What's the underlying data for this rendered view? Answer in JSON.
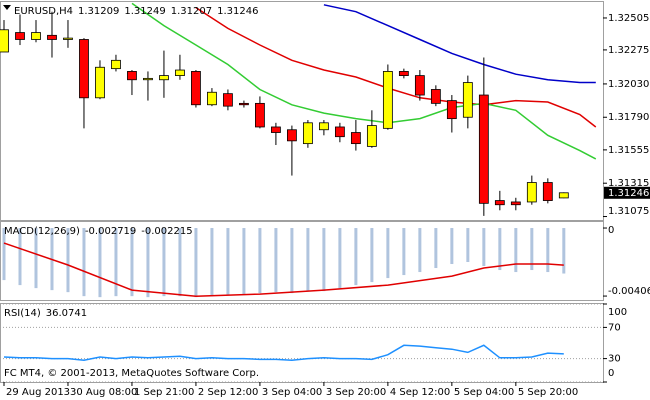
{
  "chart_data": [
    {
      "type": "candlestick",
      "label": "EURUSD,H4",
      "x": [
        0,
        1,
        2,
        3,
        4,
        5,
        6,
        7,
        8,
        9,
        10,
        11,
        12,
        13,
        14,
        15,
        16,
        17,
        18,
        19,
        20,
        21,
        22,
        23,
        24,
        25,
        26,
        27,
        28,
        29,
        30,
        31,
        32,
        33,
        34,
        35
      ],
      "open": [
        1.3226,
        1.324,
        1.3235,
        1.3238,
        1.3235,
        1.3235,
        1.3193,
        1.3214,
        1.3212,
        1.3206,
        1.3206,
        1.3209,
        1.3212,
        1.3188,
        1.3196,
        1.3189,
        1.3189,
        1.3172,
        1.317,
        1.316,
        1.317,
        1.3172,
        1.3168,
        1.3158,
        1.3171,
        1.3212,
        1.3209,
        1.3199,
        1.3191,
        1.3179,
        1.3195,
        1.3119,
        1.3118,
        1.3118,
        1.3132,
        1.31209
      ],
      "high": [
        1.3249,
        1.3253,
        1.3249,
        1.3255,
        1.3249,
        1.3236,
        1.322,
        1.3224,
        1.3213,
        1.3212,
        1.3227,
        1.3224,
        1.3213,
        1.32,
        1.3199,
        1.3191,
        1.3194,
        1.3175,
        1.3173,
        1.3177,
        1.3177,
        1.3175,
        1.3177,
        1.3184,
        1.3217,
        1.3214,
        1.3213,
        1.3202,
        1.3195,
        1.3209,
        1.3222,
        1.3126,
        1.3121,
        1.3137,
        1.3135,
        1.31249
      ],
      "low": [
        1.3226,
        1.3231,
        1.3233,
        1.3222,
        1.3229,
        1.3171,
        1.3192,
        1.3212,
        1.3195,
        1.3191,
        1.3193,
        1.3206,
        1.3186,
        1.3187,
        1.3184,
        1.3186,
        1.3171,
        1.3159,
        1.3137,
        1.3157,
        1.3166,
        1.3161,
        1.3155,
        1.3157,
        1.317,
        1.3207,
        1.3191,
        1.3187,
        1.3168,
        1.3171,
        1.3108,
        1.3112,
        1.3112,
        1.3116,
        1.3117,
        1.31207
      ],
      "close": [
        1.3242,
        1.3235,
        1.324,
        1.3235,
        1.3236,
        1.3193,
        1.3215,
        1.322,
        1.3206,
        1.3207,
        1.3209,
        1.3213,
        1.3188,
        1.3197,
        1.3187,
        1.3188,
        1.3172,
        1.3168,
        1.3162,
        1.3175,
        1.3175,
        1.3165,
        1.316,
        1.3173,
        1.3212,
        1.3209,
        1.3195,
        1.3189,
        1.3178,
        1.3204,
        1.3117,
        1.3116,
        1.3116,
        1.3132,
        1.3119,
        1.31246
      ],
      "up_color": "#ffff00",
      "down_color": "#ff0000",
      "wick_color": "#000000",
      "series": [
        {
          "color": "#0000c8",
          "x": [
            20,
            22,
            24,
            26,
            28,
            30,
            32,
            34,
            36,
            37
          ],
          "values": [
            1.326,
            1.3255,
            1.3245,
            1.3235,
            1.3225,
            1.3217,
            1.321,
            1.3206,
            1.3204,
            1.3204
          ]
        },
        {
          "color": "#e00000",
          "x": [
            12,
            14,
            16,
            18,
            20,
            22,
            24,
            26,
            28,
            30,
            32,
            34,
            36,
            37
          ],
          "values": [
            1.3258,
            1.3243,
            1.3231,
            1.322,
            1.3213,
            1.3208,
            1.32,
            1.3193,
            1.319,
            1.3188,
            1.3191,
            1.319,
            1.3181,
            1.3172
          ]
        },
        {
          "color": "#33cc33",
          "x": [
            8,
            10,
            12,
            14,
            16,
            18,
            20,
            22,
            24,
            26,
            28,
            30,
            32,
            34,
            36,
            37
          ],
          "values": [
            1.3261,
            1.3245,
            1.3231,
            1.3217,
            1.3199,
            1.3188,
            1.3182,
            1.3178,
            1.3175,
            1.3178,
            1.3186,
            1.3189,
            1.3184,
            1.3166,
            1.3155,
            1.3149
          ]
        }
      ],
      "xlim": [
        -0.25,
        37.45
      ],
      "ylim": [
        1.3105,
        1.3262
      ],
      "yticks": [
        1.32505,
        1.32275,
        {
          "value": 1.3203,
          "label": "1.32030"
        },
        {
          "value": 1.3179,
          "label": "1.31790"
        },
        1.31555,
        1.31315,
        1.31075
      ],
      "grid": false
    },
    {
      "type": "bar",
      "label": "MACD(12,26,9)",
      "x": [
        0,
        1,
        2,
        3,
        4,
        5,
        6,
        7,
        8,
        9,
        10,
        11,
        12,
        13,
        14,
        15,
        16,
        17,
        18,
        19,
        20,
        21,
        22,
        23,
        24,
        25,
        26,
        27,
        28,
        29,
        30,
        31,
        32,
        33,
        34,
        35
      ],
      "series": [
        {
          "style": "bar",
          "color": "#b0c4de",
          "values": [
            -0.00311,
            -0.00341,
            -0.00359,
            -0.00371,
            -0.00383,
            -0.00407,
            -0.00413,
            -0.00407,
            -0.00407,
            -0.00413,
            -0.00407,
            -0.00407,
            -0.00413,
            -0.00407,
            -0.00401,
            -0.00395,
            -0.00389,
            -0.00383,
            -0.00389,
            -0.00377,
            -0.00377,
            -0.00359,
            -0.00341,
            -0.00323,
            -0.00299,
            -0.00281,
            -0.00263,
            -0.00239,
            -0.00215,
            -0.00203,
            -0.00227,
            -0.00251,
            -0.00263,
            -0.00251,
            -0.00263,
            -0.002719
          ]
        },
        {
          "style": "line",
          "color": "#e00000",
          "x": [
            0,
            4,
            8,
            12,
            16,
            20,
            24,
            28,
            30,
            32,
            34,
            35
          ],
          "values": [
            -0.0009,
            -0.00221,
            -0.00371,
            -0.00407,
            -0.00395,
            -0.00371,
            -0.00341,
            -0.00287,
            -0.00239,
            -0.00215,
            -0.00215,
            -0.002215
          ]
        }
      ],
      "xlim": [
        -0.25,
        37.45
      ],
      "ylim": [
        -0.0043,
        0.00036
      ],
      "yticks": [
        0,
        -0.004065
      ],
      "grid": false
    },
    {
      "type": "line",
      "label": "RSI(14)",
      "x": [
        0,
        1,
        2,
        3,
        4,
        5,
        6,
        7,
        8,
        9,
        10,
        11,
        12,
        13,
        14,
        15,
        16,
        17,
        18,
        19,
        20,
        21,
        22,
        23,
        24,
        25,
        26,
        27,
        28,
        29,
        30,
        31,
        32,
        33,
        34,
        35
      ],
      "series": [
        {
          "style": "line",
          "color": "#1e90ff",
          "values": [
            32,
            31,
            31,
            30,
            30,
            28,
            32,
            30,
            32,
            31,
            32,
            33,
            30,
            31,
            30,
            30,
            29,
            29,
            28,
            30,
            31,
            30,
            30,
            29,
            35,
            47,
            46,
            44,
            42,
            38,
            47,
            31,
            31,
            32,
            37,
            36.0741
          ]
        }
      ],
      "xlim": [
        -0.25,
        37.45
      ],
      "ylim": [
        0,
        100
      ],
      "yticks": [
        100,
        70,
        30,
        0
      ],
      "grid": true,
      "xticks": [
        {
          "value": 0,
          "label": "29 Aug 2013"
        },
        {
          "value": 4,
          "label": "30 Aug 08:00"
        },
        {
          "value": 8,
          "label": "1 Sep 21:00"
        },
        {
          "value": 12,
          "label": "2 Sep 12:00"
        },
        {
          "value": 16,
          "label": "3 Sep 04:00"
        },
        {
          "value": 20,
          "label": "3 Sep 20:00"
        },
        {
          "value": 24,
          "label": "4 Sep 12:00"
        },
        {
          "value": 28,
          "label": "5 Sep 04:00"
        },
        {
          "value": 32,
          "label": "5 Sep 20:00"
        }
      ]
    }
  ],
  "watermark": "FC MT4, © 2001-2013, MetaQuotes Software Corp."
}
